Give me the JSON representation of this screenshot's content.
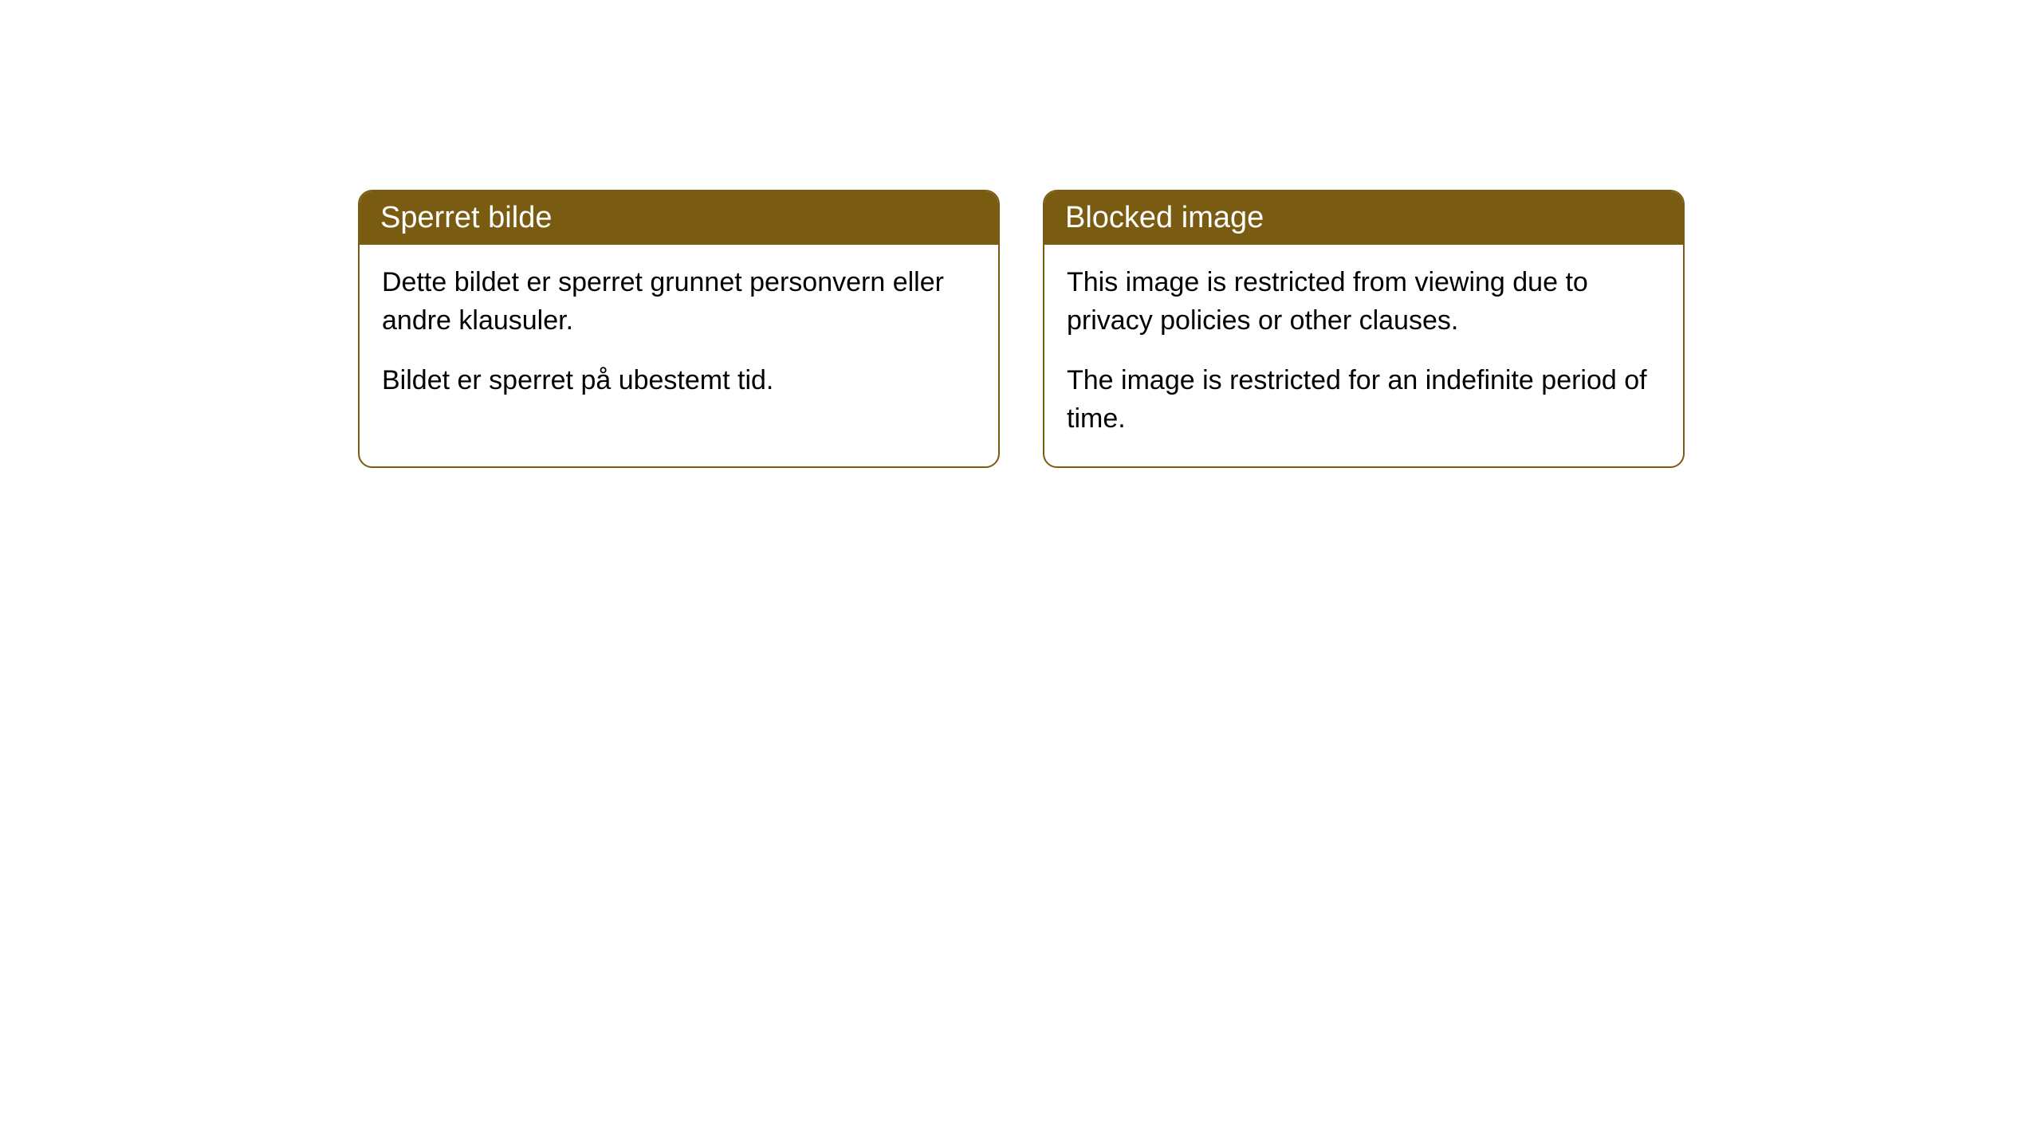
{
  "cards": [
    {
      "title": "Sperret bilde",
      "paragraph1": "Dette bildet er sperret grunnet personvern eller andre klausuler.",
      "paragraph2": "Bildet er sperret på ubestemt tid."
    },
    {
      "title": "Blocked image",
      "paragraph1": "This image is restricted from viewing due to privacy policies or other clauses.",
      "paragraph2": "The image is restricted for an indefinite period of time."
    }
  ],
  "styling": {
    "card_border_color": "#7a5b12",
    "card_header_bg": "#7a5b12",
    "card_header_text_color": "#ffffff",
    "card_body_bg": "#ffffff",
    "card_body_text_color": "#000000",
    "border_radius": 18,
    "header_fontsize": 38,
    "body_fontsize": 34
  }
}
